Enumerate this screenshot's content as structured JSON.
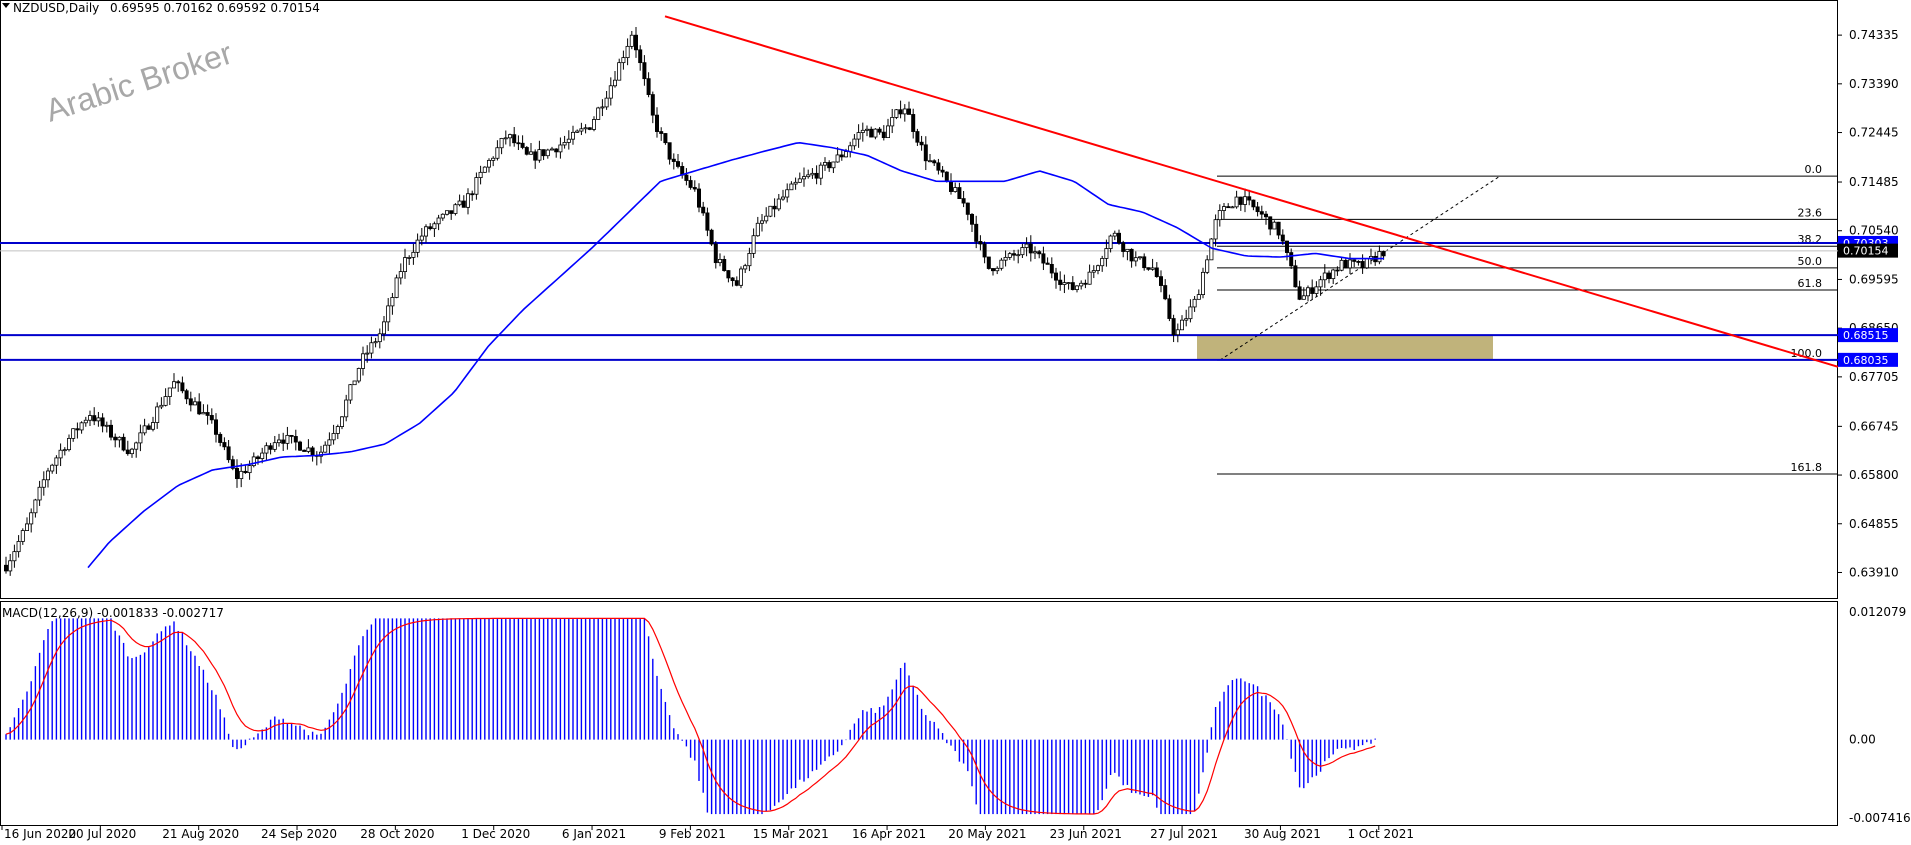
{
  "header": {
    "symbol": "NZDUSD,Daily",
    "ohlc": "0.69595 0.70162 0.69592 0.70154"
  },
  "watermark": "Arabic Broker",
  "macd": {
    "label": "MACD(12,26,9) -0.001833 -0.002717",
    "scale_labels": [
      "0.012079",
      "0.00",
      "-0.007416"
    ],
    "ylim": [
      -0.007416,
      0.012079
    ],
    "histogram_color": "#0000ff",
    "signal_color": "#ff0000"
  },
  "colors": {
    "ma": "#0000ff",
    "trendline": "#ff0000",
    "horizontal_lines": "#0000cc",
    "zone": "#b5a664",
    "price_tag_bg": "#0000ff",
    "candles": "#000000"
  },
  "chart_data": {
    "type": "candlestick",
    "price_axis_labels": [
      "0.74335",
      "0.73390",
      "0.72445",
      "0.71485",
      "0.70540",
      "0.69595",
      "0.68650",
      "0.67705",
      "0.66745",
      "0.65800",
      "0.64855",
      "0.63910"
    ],
    "date_axis_labels": [
      "16 Jun 2020",
      "20 Jul 2020",
      "21 Aug 2020",
      "24 Sep 2020",
      "28 Oct 2020",
      "1 Dec 2020",
      "6 Jan 2021",
      "9 Feb 2021",
      "15 Mar 2021",
      "16 Apr 2021",
      "20 May 2021",
      "23 Jun 2021",
      "27 Jul 2021",
      "30 Aug 2021",
      "1 Oct 2021"
    ],
    "ylim": [
      0.6357,
      0.749
    ],
    "close_path": [
      0.6405,
      0.648,
      0.659,
      0.665,
      0.67,
      0.666,
      0.6625,
      0.669,
      0.676,
      0.672,
      0.667,
      0.6575,
      0.661,
      0.6655,
      0.664,
      0.662,
      0.669,
      0.68,
      0.686,
      0.699,
      0.705,
      0.708,
      0.711,
      0.718,
      0.724,
      0.7195,
      0.721,
      0.723,
      0.726,
      0.734,
      0.744,
      0.727,
      0.718,
      0.713,
      0.7,
      0.695,
      0.706,
      0.711,
      0.715,
      0.717,
      0.72,
      0.725,
      0.724,
      0.73,
      0.72,
      0.715,
      0.71,
      0.698,
      0.7,
      0.702,
      0.698,
      0.694,
      0.697,
      0.705,
      0.7,
      0.698,
      0.685,
      0.692,
      0.708,
      0.712,
      0.709,
      0.705,
      0.692,
      0.696,
      0.699,
      0.6985,
      0.7015
    ],
    "ma_path": [
      0.621,
      0.629,
      0.637,
      0.645,
      0.651,
      0.656,
      0.659,
      0.66,
      0.6615,
      0.6618,
      0.6625,
      0.664,
      0.668,
      0.674,
      0.683,
      0.69,
      0.696,
      0.702,
      0.7085,
      0.715,
      0.717,
      0.719,
      0.7208,
      0.7225,
      0.7215,
      0.72,
      0.717,
      0.715,
      0.715,
      0.715,
      0.717,
      0.715,
      0.7105,
      0.709,
      0.706,
      0.702,
      0.7005,
      0.7003,
      0.701,
      0.7,
      0.7
    ],
    "trendline": {
      "from": [
        "9 Feb 2021",
        0.747
      ],
      "to": [
        "late Oct 2021",
        0.679
      ]
    },
    "horizontal_levels": [
      {
        "value": 0.70303,
        "label": "0.70303"
      },
      {
        "value": 0.68515,
        "label": "0.68515"
      },
      {
        "value": 0.68035,
        "label": "0.68035"
      }
    ],
    "current_price": "0.70154",
    "fibonacci": {
      "anchor_low": 0.6803,
      "anchor_high": 0.716,
      "levels": [
        {
          "label": "0.0",
          "value": 0.716
        },
        {
          "label": "23.6",
          "value": 0.7076
        },
        {
          "label": "38.2",
          "value": 0.7024
        },
        {
          "label": "50.0",
          "value": 0.6982
        },
        {
          "label": "61.8",
          "value": 0.6939
        },
        {
          "label": "100.0",
          "value": 0.6803
        },
        {
          "label": "161.8",
          "value": 0.6582
        }
      ]
    },
    "support_zone": [
      0.6803,
      0.6851
    ]
  }
}
